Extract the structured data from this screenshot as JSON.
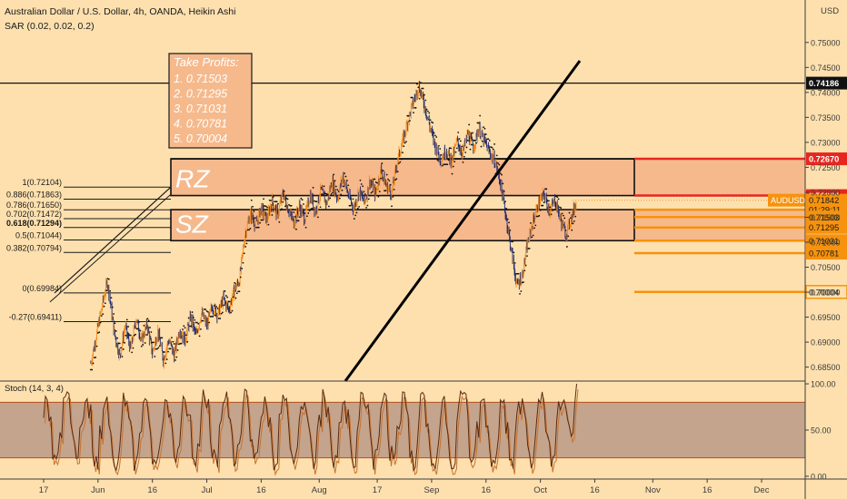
{
  "header": {
    "title": "Australian Dollar / U.S. Dollar, 4h, OANDA, Heikin Ashi",
    "indicator": "SAR (0.02, 0.02, 0.2)",
    "currency": "USD"
  },
  "colors": {
    "background": "#fde0ae",
    "zone_fill": "#f6b98c",
    "red": "#e8261f",
    "orange": "#f6920e",
    "candle_up": "#f08a1d",
    "candle_down": "#1c2a6e",
    "stoch": "#8b3a17",
    "stoch_band": "#c4a48c"
  },
  "chart_data": [
    {
      "type": "line",
      "chart": "price",
      "title": "Australian Dollar / U.S. Dollar, 4h, OANDA, Heikin Ashi",
      "ylim": [
        0.6822,
        0.7585
      ],
      "y_ticks": [
        0.75,
        0.745,
        0.74,
        0.735,
        0.73,
        0.725,
        0.72,
        0.715,
        0.71,
        0.705,
        0.7,
        0.695,
        0.69,
        0.685
      ],
      "y_tick_labels": [
        "0.75000",
        "0.74500",
        "0.74000",
        "0.73500",
        "0.73000",
        "0.72500",
        "0.72000",
        "0.71500",
        "0.71000",
        "0.70500",
        "0.70000",
        "0.69500",
        "0.69000",
        "0.68500"
      ],
      "x_labels": [
        {
          "label": "17",
          "d": 0
        },
        {
          "label": "Jun",
          "d": 15
        },
        {
          "label": "16",
          "d": 30
        },
        {
          "label": "Jul",
          "d": 45
        },
        {
          "label": "16",
          "d": 60
        },
        {
          "label": "Aug",
          "d": 76
        },
        {
          "label": "17",
          "d": 92
        },
        {
          "label": "Sep",
          "d": 107
        },
        {
          "label": "16",
          "d": 122
        },
        {
          "label": "Oct",
          "d": 137
        },
        {
          "label": "16",
          "d": 152
        },
        {
          "label": "Nov",
          "d": 168
        },
        {
          "label": "16",
          "d": 183
        },
        {
          "label": "Dec",
          "d": 198
        }
      ],
      "series": [
        {
          "values": [
            [
              13,
              0.6858
            ],
            [
              14.5,
              0.6912
            ],
            [
              16,
              0.6968
            ],
            [
              17.5,
              0.7022
            ],
            [
              18.5,
              0.6975
            ],
            [
              19.5,
              0.6918
            ],
            [
              21,
              0.6872
            ],
            [
              22.5,
              0.6932
            ],
            [
              24,
              0.6884
            ],
            [
              25.5,
              0.6948
            ],
            [
              27,
              0.6902
            ],
            [
              28.5,
              0.6935
            ],
            [
              30,
              0.6878
            ],
            [
              31.5,
              0.6922
            ],
            [
              33,
              0.6865
            ],
            [
              34.5,
              0.6905
            ],
            [
              36,
              0.6874
            ],
            [
              37.5,
              0.6926
            ],
            [
              39,
              0.6903
            ],
            [
              40.5,
              0.6951
            ],
            [
              42,
              0.6912
            ],
            [
              43.5,
              0.6958
            ],
            [
              45,
              0.6934
            ],
            [
              46.5,
              0.6972
            ],
            [
              48,
              0.6955
            ],
            [
              49.5,
              0.6986
            ],
            [
              51,
              0.6965
            ],
            [
              52.5,
              0.7002
            ],
            [
              54,
              0.7025
            ],
            [
              55.5,
              0.7115
            ],
            [
              57,
              0.7158
            ],
            [
              58.5,
              0.7134
            ],
            [
              60,
              0.7168
            ],
            [
              61.5,
              0.7145
            ],
            [
              63,
              0.7182
            ],
            [
              64.5,
              0.7155
            ],
            [
              66,
              0.7198
            ],
            [
              67.5,
              0.7165
            ],
            [
              69,
              0.7138
            ],
            [
              70.5,
              0.7172
            ],
            [
              72,
              0.7148
            ],
            [
              73.5,
              0.7195
            ],
            [
              75,
              0.7162
            ],
            [
              76.5,
              0.7205
            ],
            [
              78,
              0.7176
            ],
            [
              79.5,
              0.7222
            ],
            [
              81,
              0.7188
            ],
            [
              82.5,
              0.7232
            ],
            [
              84,
              0.7195
            ],
            [
              85.5,
              0.7168
            ],
            [
              87,
              0.7202
            ],
            [
              88.5,
              0.7178
            ],
            [
              90,
              0.7224
            ],
            [
              91.5,
              0.7195
            ],
            [
              93,
              0.7245
            ],
            [
              94.5,
              0.7212
            ],
            [
              96,
              0.7198
            ],
            [
              97.5,
              0.7262
            ],
            [
              99,
              0.7302
            ],
            [
              100.5,
              0.7345
            ],
            [
              102,
              0.7382
            ],
            [
              103.5,
              0.7412
            ],
            [
              105,
              0.7375
            ],
            [
              106.5,
              0.7332
            ],
            [
              108,
              0.7292
            ],
            [
              109.5,
              0.7266
            ],
            [
              111,
              0.7284
            ],
            [
              112.5,
              0.7262
            ],
            [
              114,
              0.7302
            ],
            [
              115.5,
              0.7278
            ],
            [
              117,
              0.7318
            ],
            [
              118.5,
              0.729
            ],
            [
              120,
              0.7328
            ],
            [
              121.5,
              0.7302
            ],
            [
              123,
              0.728
            ],
            [
              124.5,
              0.7262
            ],
            [
              126,
              0.7218
            ],
            [
              127.5,
              0.7152
            ],
            [
              129,
              0.7082
            ],
            [
              130.5,
              0.7012
            ],
            [
              132,
              0.7035
            ],
            [
              133.5,
              0.7098
            ],
            [
              135,
              0.7142
            ],
            [
              136.5,
              0.7178
            ],
            [
              138,
              0.7195
            ],
            [
              139.5,
              0.7162
            ],
            [
              141,
              0.7185
            ],
            [
              142.5,
              0.7146
            ],
            [
              144,
              0.7115
            ],
            [
              145.5,
              0.7148
            ],
            [
              147,
              0.7184
            ]
          ]
        }
      ],
      "levels": [
        {
          "label": "0.74186",
          "value": 0.74186,
          "style": "black-box"
        },
        {
          "label": "0.72670",
          "value": 0.7267,
          "style": "red"
        },
        {
          "label": "0.71934",
          "value": 0.71934,
          "style": "red"
        },
        {
          "label": "0.71842",
          "value": 0.71842,
          "style": "orange"
        },
        {
          "label": "01:29:11",
          "value": 0.71652,
          "style": "orange"
        },
        {
          "label": "0.71503",
          "value": 0.71503,
          "style": "orange"
        },
        {
          "label": "0.71295",
          "value": 0.71295,
          "style": "orange"
        },
        {
          "label": "0.71031",
          "value": 0.71031,
          "style": "orange"
        },
        {
          "label": "0.70781",
          "value": 0.70781,
          "style": "orange"
        },
        {
          "label": "0.70004",
          "value": 0.70004,
          "style": "orange-box"
        }
      ],
      "symbol_label": "AUDUSD",
      "fib_levels": [
        {
          "label": "1(0.72104)",
          "value": 0.72104
        },
        {
          "label": "0.886(0.71863)",
          "value": 0.71863
        },
        {
          "label": "0.786(0.71650)",
          "value": 0.7165
        },
        {
          "label": "0.702(0.71472)",
          "value": 0.71472
        },
        {
          "label": "0.618(0.71294)",
          "value": 0.71294
        },
        {
          "label": "0.5(0.71044)",
          "value": 0.71044
        },
        {
          "label": "0.382(0.70794)",
          "value": 0.70794
        },
        {
          "label": "0(0.69984)",
          "value": 0.69984
        },
        {
          "label": "-0.27(0.69411)",
          "value": 0.69411
        }
      ],
      "zones": [
        {
          "label": "RZ",
          "top": 0.7267,
          "bottom": 0.71934
        },
        {
          "label": "SZ",
          "top": 0.71652,
          "bottom": 0.71031
        }
      ],
      "take_profits": {
        "title": "Take Profits:",
        "items": [
          "1. 0.71503",
          "2. 0.71295",
          "3. 0.71031",
          "4. 0.70781",
          "5. 0.70004"
        ]
      }
    },
    {
      "type": "line",
      "chart": "stochastic",
      "title": "Stoch (14, 3, 4)",
      "ylim": [
        -3,
        103
      ],
      "y_ticks": [
        100,
        50,
        0
      ],
      "y_tick_labels": [
        "100.00",
        "50.00",
        "0.00"
      ],
      "band": [
        20,
        80
      ]
    }
  ]
}
